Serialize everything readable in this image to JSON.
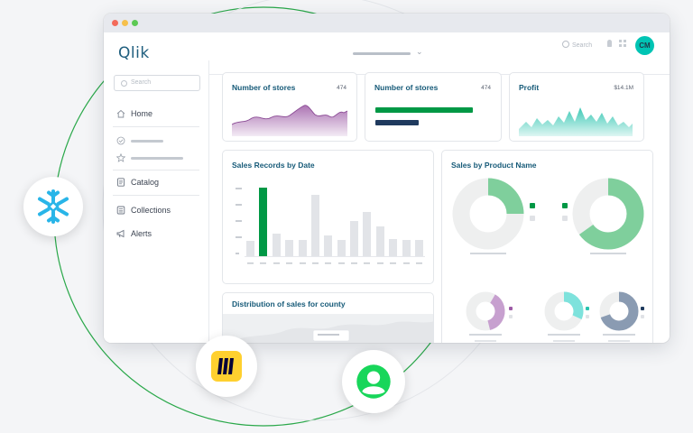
{
  "app": {
    "logo_text": "Qlik",
    "search_placeholder": "Search",
    "avatar_initials": "CM"
  },
  "sidebar": {
    "search_placeholder": "Search",
    "items": [
      {
        "label": "Home",
        "icon": "home-icon"
      },
      {
        "label": "",
        "icon": "check-circle-icon"
      },
      {
        "label": "",
        "icon": "star-icon"
      },
      {
        "label": "Catalog",
        "icon": "catalog-icon"
      },
      {
        "label": "Collections",
        "icon": "collections-icon"
      },
      {
        "label": "Alerts",
        "icon": "megaphone-icon"
      }
    ]
  },
  "kpis": [
    {
      "title": "Number of stores",
      "value": "474",
      "kind": "area",
      "color": "#9d5ba6"
    },
    {
      "title": "Number of stores",
      "value": "474",
      "kind": "bars",
      "colors": [
        "#009845",
        "#1f3a5e"
      ],
      "bar_values": [
        1.0,
        0.45
      ]
    },
    {
      "title": "Profit",
      "value": "$14.1M",
      "kind": "area",
      "color": "#28c3ae"
    }
  ],
  "sales_records": {
    "title": "Sales Records by Date",
    "highlight_color": "#009845",
    "base_color": "#e2e4e8"
  },
  "sales_by_product": {
    "title": "Sales by Product Name",
    "donuts": [
      {
        "color": "#7fcf9c",
        "fraction": 0.25
      },
      {
        "color": "#7fcf9c",
        "fraction": 0.65
      },
      {
        "color": "#c7a0cf",
        "fraction": 0.38
      },
      {
        "color": "#7ee2dc",
        "fraction": 0.32
      },
      {
        "color": "#8a9bb2",
        "fraction": 0.7
      }
    ],
    "legend_colors": [
      "#009845",
      "#9d5ba6",
      "#28c3ae",
      "#1f3a5e"
    ]
  },
  "distribution": {
    "title": "Distribution of sales for county"
  },
  "integrations": [
    {
      "name": "snowflake-logo-icon",
      "color": "#29b5e8"
    },
    {
      "name": "miro-logo-icon",
      "color": "#ffd02f"
    },
    {
      "name": "people-logo-icon",
      "color": "#18d65a"
    }
  ],
  "colors": {
    "orbit": "#2aa84a",
    "accent": "#00c4b4",
    "title": "#165a78"
  }
}
